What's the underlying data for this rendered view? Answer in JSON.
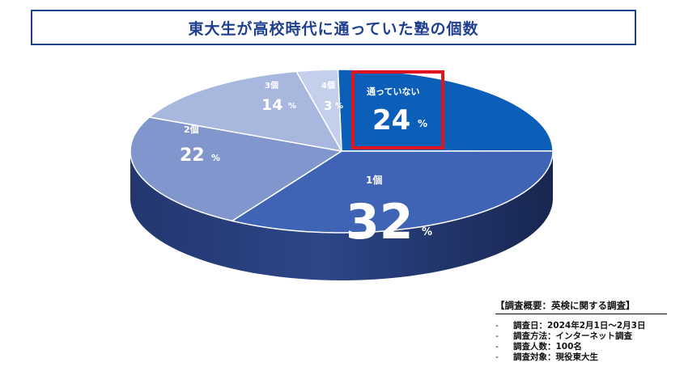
{
  "chart_data": {
    "type": "pie",
    "title": "東大生が高校時代に通っていた塾の個数",
    "unit": "%",
    "slices": [
      {
        "label": "通っていない",
        "value": 24,
        "color": "#0b5fb8",
        "highlighted": true
      },
      {
        "label": "1個",
        "value": 32,
        "color": "#3f63b5"
      },
      {
        "label": "2個",
        "value": 22,
        "color": "#8096cc"
      },
      {
        "label": "3個",
        "value": 14,
        "color": "#a8b7de"
      },
      {
        "label": "4個",
        "value": 3,
        "color": "#c4cfeb"
      }
    ],
    "highlight_color": "#e0141e"
  },
  "survey": {
    "heading": "【調査概要：英検に関する調査】",
    "items": [
      "調査日：2024年2月1日〜2月3日",
      "調査方法：インターネット調査",
      "調査人数：100名",
      "調査対象：現役東大生"
    ]
  }
}
